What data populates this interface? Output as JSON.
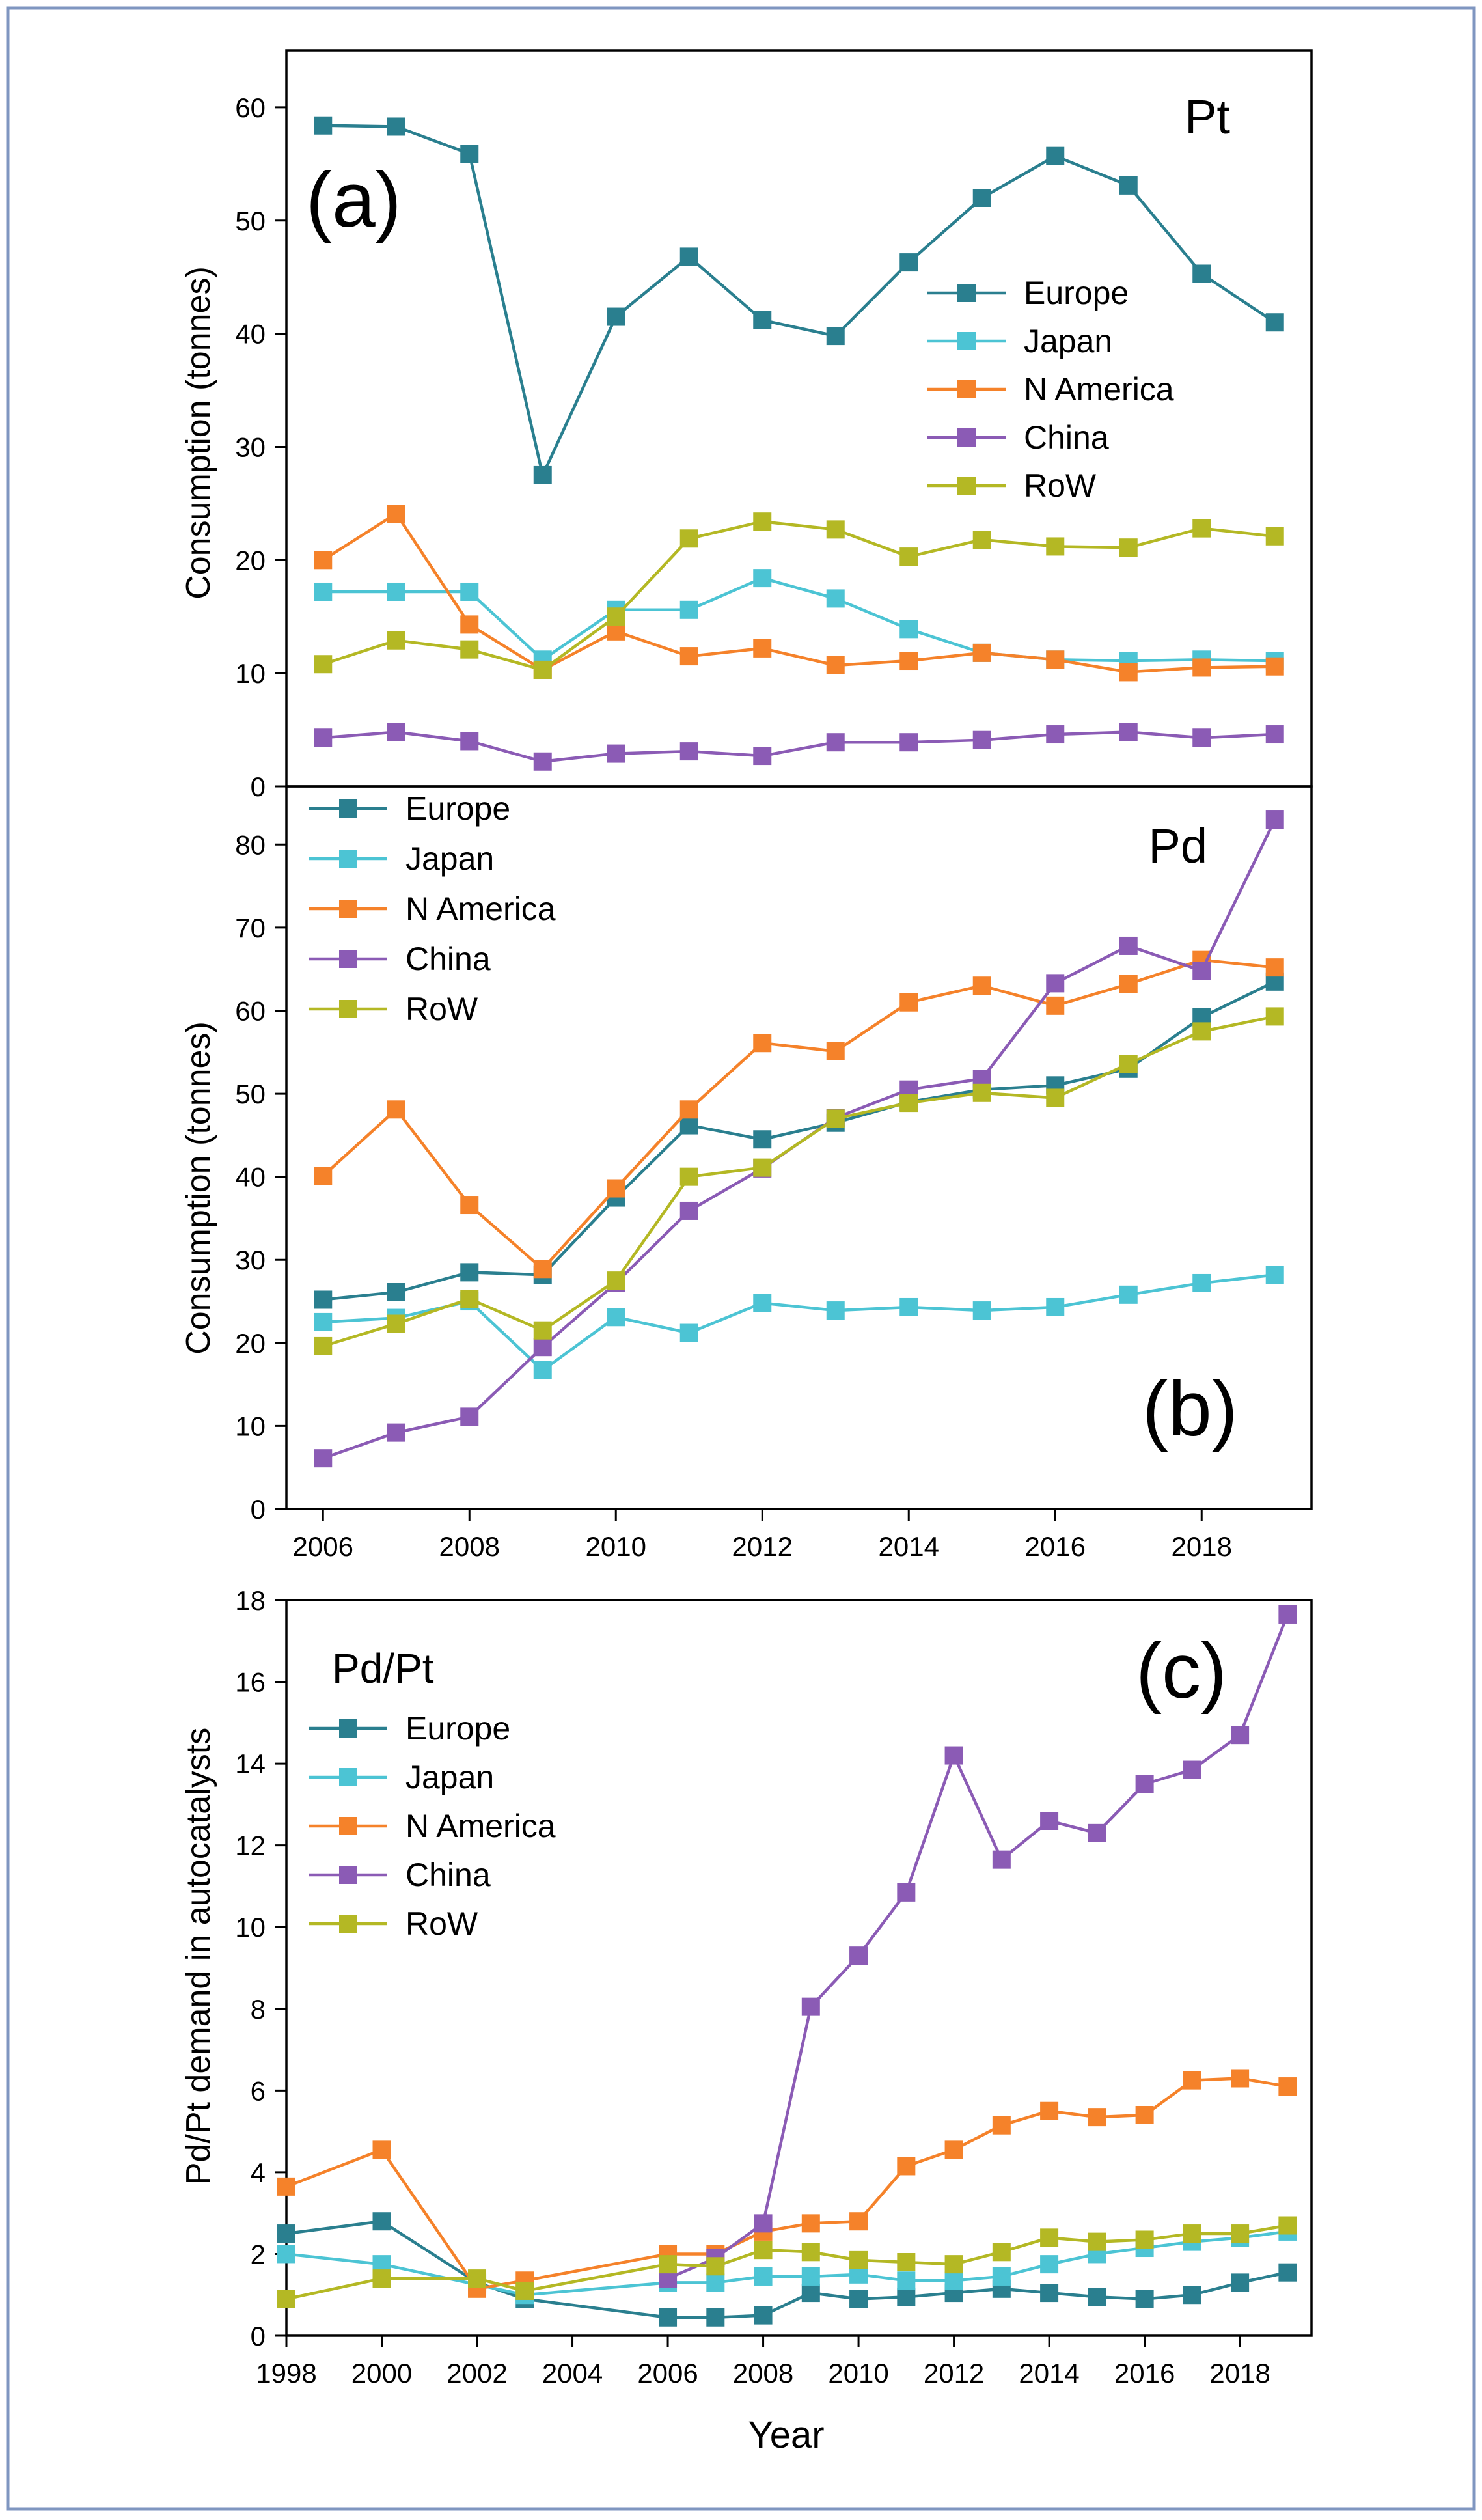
{
  "colors": {
    "europe": "#2a7f8f",
    "japan": "#4cc4d4",
    "n_america": "#f5822a",
    "china": "#8b5bb5",
    "row": "#b4b824",
    "frame": "#7f96c0"
  },
  "x_axis_title": "Year",
  "chart_data": [
    {
      "type": "line",
      "panel_label": "(a)",
      "metal_label": "Pt",
      "ylabel": "Consumption (tonnes)",
      "xlim": [
        2005.5,
        2019.5
      ],
      "ylim": [
        0,
        65
      ],
      "yticks": [
        0,
        10,
        20,
        30,
        40,
        50,
        60
      ],
      "xticks": [],
      "x": [
        2006,
        2007,
        2008,
        2009,
        2010,
        2011,
        2012,
        2013,
        2014,
        2015,
        2016,
        2017,
        2018,
        2019
      ],
      "legend_position": "right",
      "series": [
        {
          "name": "Europe",
          "color_key": "europe",
          "values": [
            58.4,
            58.3,
            55.9,
            27.5,
            41.5,
            46.8,
            41.2,
            39.8,
            46.3,
            52.0,
            55.7,
            53.1,
            45.3,
            41.0
          ]
        },
        {
          "name": "Japan",
          "color_key": "japan",
          "values": [
            17.2,
            17.2,
            17.2,
            11.2,
            15.6,
            15.6,
            18.4,
            16.6,
            13.9,
            11.8,
            11.2,
            11.1,
            11.2,
            11.1
          ]
        },
        {
          "name": "N America",
          "color_key": "n_america",
          "values": [
            20.0,
            24.1,
            14.3,
            10.3,
            13.7,
            11.5,
            12.2,
            10.7,
            11.1,
            11.8,
            11.2,
            10.1,
            10.5,
            10.6
          ]
        },
        {
          "name": "China",
          "color_key": "china",
          "values": [
            4.3,
            4.8,
            4.0,
            2.2,
            2.9,
            3.1,
            2.7,
            3.9,
            3.9,
            4.1,
            4.6,
            4.8,
            4.3,
            4.6
          ]
        },
        {
          "name": "RoW",
          "color_key": "row",
          "values": [
            10.8,
            12.9,
            12.1,
            10.3,
            15.0,
            21.9,
            23.4,
            22.7,
            20.3,
            21.8,
            21.2,
            21.1,
            22.8,
            22.1
          ]
        }
      ]
    },
    {
      "type": "line",
      "panel_label": "(b)",
      "metal_label": "Pd",
      "ylabel": "Consumption (tonnes)",
      "xlim": [
        2005.5,
        2019.5
      ],
      "ylim": [
        0,
        87
      ],
      "yticks": [
        0,
        10,
        20,
        30,
        40,
        50,
        60,
        70,
        80
      ],
      "xticks": [
        2006,
        2008,
        2010,
        2012,
        2014,
        2016,
        2018
      ],
      "x": [
        2006,
        2007,
        2008,
        2009,
        2010,
        2011,
        2012,
        2013,
        2014,
        2015,
        2016,
        2017,
        2018,
        2019
      ],
      "legend_position": "top-left",
      "series": [
        {
          "name": "Europe",
          "color_key": "europe",
          "values": [
            25.2,
            26.1,
            28.5,
            28.2,
            37.5,
            46.2,
            44.5,
            46.5,
            49.0,
            50.5,
            51.0,
            53.0,
            59.2,
            63.5
          ]
        },
        {
          "name": "Japan",
          "color_key": "japan",
          "values": [
            22.5,
            23.0,
            25.0,
            16.7,
            23.1,
            21.2,
            24.8,
            23.9,
            24.3,
            23.9,
            24.3,
            25.8,
            27.2,
            28.2
          ]
        },
        {
          "name": "N America",
          "color_key": "n_america",
          "values": [
            40.1,
            48.1,
            36.6,
            28.9,
            38.6,
            48.1,
            56.1,
            55.1,
            61.0,
            63.0,
            60.6,
            63.2,
            66.1,
            65.2
          ]
        },
        {
          "name": "China",
          "color_key": "china",
          "values": [
            6.1,
            9.2,
            11.1,
            19.5,
            27.2,
            35.9,
            41.0,
            47.1,
            50.5,
            51.8,
            63.3,
            67.8,
            64.8,
            83.0
          ]
        },
        {
          "name": "RoW",
          "color_key": "row",
          "values": [
            19.6,
            22.3,
            25.3,
            21.5,
            27.5,
            40.0,
            41.1,
            47.0,
            48.9,
            50.1,
            49.5,
            53.6,
            57.5,
            59.3
          ]
        }
      ]
    },
    {
      "type": "line",
      "panel_label": "(c)",
      "metal_label": "Pd/Pt",
      "ylabel": "Pd/Pt demand in autocatalysts",
      "xlabel": "Year",
      "xlim": [
        1998,
        2019.5
      ],
      "ylim": [
        0,
        18
      ],
      "yticks": [
        0,
        2,
        4,
        6,
        8,
        10,
        12,
        14,
        16,
        18
      ],
      "xticks": [
        1998,
        2000,
        2002,
        2004,
        2006,
        2008,
        2010,
        2012,
        2014,
        2016,
        2018
      ],
      "legend_position": "top-left",
      "series": [
        {
          "name": "Europe",
          "color_key": "europe",
          "x": [
            1998,
            2000,
            2002,
            2003,
            2006,
            2007,
            2008,
            2009,
            2010,
            2011,
            2012,
            2013,
            2014,
            2015,
            2016,
            2017,
            2018,
            2019
          ],
          "values": [
            2.5,
            2.8,
            1.3,
            0.9,
            0.45,
            0.45,
            0.5,
            1.05,
            0.9,
            0.95,
            1.05,
            1.15,
            1.05,
            0.95,
            0.9,
            1.0,
            1.3,
            1.55
          ]
        },
        {
          "name": "Japan",
          "color_key": "japan",
          "x": [
            1998,
            2000,
            2002,
            2003,
            2006,
            2007,
            2008,
            2009,
            2010,
            2011,
            2012,
            2013,
            2014,
            2015,
            2016,
            2017,
            2018,
            2019
          ],
          "values": [
            2.0,
            1.75,
            1.25,
            1.0,
            1.3,
            1.3,
            1.45,
            1.45,
            1.5,
            1.35,
            1.35,
            1.45,
            1.75,
            2.0,
            2.15,
            2.3,
            2.4,
            2.55
          ]
        },
        {
          "name": "N America",
          "color_key": "n_america",
          "x": [
            1998,
            2000,
            2002,
            2003,
            2006,
            2007,
            2008,
            2009,
            2010,
            2011,
            2012,
            2013,
            2014,
            2015,
            2016,
            2017,
            2018,
            2019
          ],
          "values": [
            3.65,
            4.55,
            1.15,
            1.35,
            2.0,
            2.0,
            2.55,
            2.75,
            2.8,
            4.15,
            4.55,
            5.15,
            5.5,
            5.35,
            5.4,
            6.25,
            6.3,
            6.1
          ]
        },
        {
          "name": "China",
          "color_key": "china",
          "x": [
            2006,
            2007,
            2008,
            2009,
            2010,
            2011,
            2012,
            2013,
            2014,
            2015,
            2016,
            2017,
            2018,
            2019
          ],
          "values": [
            1.4,
            1.9,
            2.75,
            8.05,
            9.3,
            10.85,
            14.2,
            11.65,
            12.6,
            12.3,
            13.5,
            13.85,
            14.7,
            17.65
          ]
        },
        {
          "name": "RoW",
          "color_key": "row",
          "x": [
            1998,
            2000,
            2002,
            2003,
            2006,
            2007,
            2008,
            2009,
            2010,
            2011,
            2012,
            2013,
            2014,
            2015,
            2016,
            2017,
            2018,
            2019
          ],
          "values": [
            0.9,
            1.4,
            1.4,
            1.1,
            1.75,
            1.7,
            2.1,
            2.05,
            1.85,
            1.8,
            1.75,
            2.05,
            2.4,
            2.3,
            2.35,
            2.5,
            2.5,
            2.7
          ]
        }
      ]
    }
  ]
}
